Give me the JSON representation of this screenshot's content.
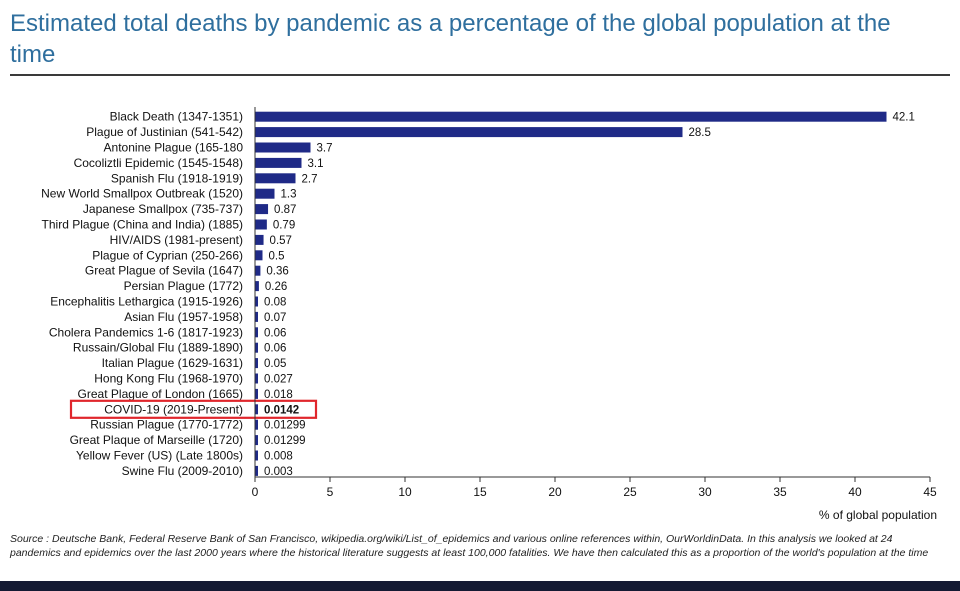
{
  "title": "Estimated total deaths by pandemic as a percentage of the global population at the time",
  "source_label": "Source : Deutsche Bank, Federal Reserve Bank of San Francisco, wikipedia.org/wiki/List_of_epidemics and various online references within, OurWorldinData. In this analysis we looked at 24 pandemics and epidemics over the last 2000 years where the historical literature suggests at least 100,000 fatalities. We have then calculated this as a proportion of the world's population at the time",
  "colors": {
    "bar": "#1f2a87",
    "title": "#2f6f9e",
    "highlight": "#e0262c",
    "band": "#141a33"
  },
  "chart_data": {
    "type": "bar",
    "orientation": "horizontal",
    "xlabel": "% of global population",
    "xlim": [
      0,
      45
    ],
    "xticks": [
      0,
      5,
      10,
      15,
      20,
      25,
      30,
      35,
      40,
      45
    ],
    "highlighted": "COVID-19 (2019-Present)",
    "categories": [
      "Black Death (1347-1351)",
      "Plague of Justinian (541-542)",
      "Antonine Plague (165-180",
      "Cocoliztli Epidemic (1545-1548)",
      "Spanish Flu (1918-1919)",
      "New World Smallpox Outbreak (1520)",
      "Japanese Smallpox (735-737)",
      "Third Plague (China and India) (1885)",
      "HIV/AIDS (1981-present)",
      "Plague of Cyprian (250-266)",
      "Great Plague of Sevila (1647)",
      "Persian Plague (1772)",
      "Encephalitis Lethargica (1915-1926)",
      "Asian Flu (1957-1958)",
      "Cholera Pandemics 1-6 (1817-1923)",
      "Russain/Global Flu (1889-1890)",
      "Italian Plague (1629-1631)",
      "Hong Kong Flu (1968-1970)",
      "Great Plague of London (1665)",
      "COVID-19 (2019-Present)",
      "Russian Plague (1770-1772)",
      "Great Plaque of Marseille (1720)",
      "Yellow Fever (US) (Late 1800s)",
      "Swine Flu (2009-2010)"
    ],
    "values": [
      42.1,
      28.5,
      3.7,
      3.1,
      2.7,
      1.3,
      0.87,
      0.79,
      0.57,
      0.5,
      0.36,
      0.26,
      0.08,
      0.07,
      0.06,
      0.06,
      0.05,
      0.027,
      0.018,
      0.0142,
      0.01299,
      0.01299,
      0.008,
      0.003
    ],
    "value_labels": [
      "42.1",
      "28.5",
      "3.7",
      "3.1",
      "2.7",
      "1.3",
      "0.87",
      "0.79",
      "0.57",
      "0.5",
      "0.36",
      "0.26",
      "0.08",
      "0.07",
      "0.06",
      "0.06",
      "0.05",
      "0.027",
      "0.018",
      "0.0142",
      "0.01299",
      "0.01299",
      "0.008",
      "0.003"
    ]
  }
}
